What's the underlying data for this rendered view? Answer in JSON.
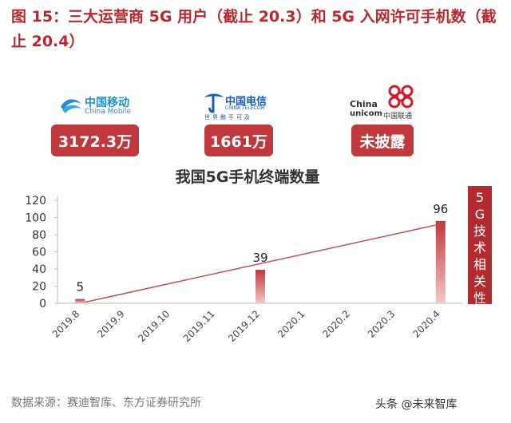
{
  "figure_title": "图 15：三大运营商 5G 用户（截止 20.3）和 5G 入网许可手机数（截止 20.4）",
  "operators": [
    {
      "logo_cn": "中国移动",
      "logo_en": "China Mobile",
      "value": "3172.3万"
    },
    {
      "logo_cn": "中国电信",
      "logo_en": "CHINA TELECOM",
      "logo_sub": "世界触手可及",
      "value": "1661万"
    },
    {
      "logo_cn": "中国联通",
      "logo_en_top": "China",
      "logo_en_bottom": "unicom",
      "value": "未披露"
    }
  ],
  "side_label": "5G技术相关性",
  "source": "数据来源：赛迪智库、东方证券研究所",
  "watermark": "头条 @未来智库",
  "colors": {
    "accent": "#b8282d",
    "bar": "#c0383c",
    "trend": "#c05050"
  },
  "chart_data": {
    "type": "bar",
    "title": "我国5G手机终端数量",
    "categories": [
      "2019.8",
      "2019.9",
      "2019.10",
      "2019.11",
      "2019.12",
      "2020.1",
      "2020.2",
      "2020.3",
      "2020.4"
    ],
    "values": [
      5,
      null,
      null,
      null,
      39,
      null,
      null,
      null,
      96
    ],
    "data_labels": [
      "5",
      "",
      "",
      "",
      "39",
      "",
      "",
      "",
      "96"
    ],
    "ylim": [
      0,
      120
    ],
    "yticks": [
      0,
      20,
      40,
      60,
      80,
      100,
      120
    ],
    "grid": false,
    "trendline": {
      "from": "2019.8",
      "to": "2020.4"
    }
  }
}
